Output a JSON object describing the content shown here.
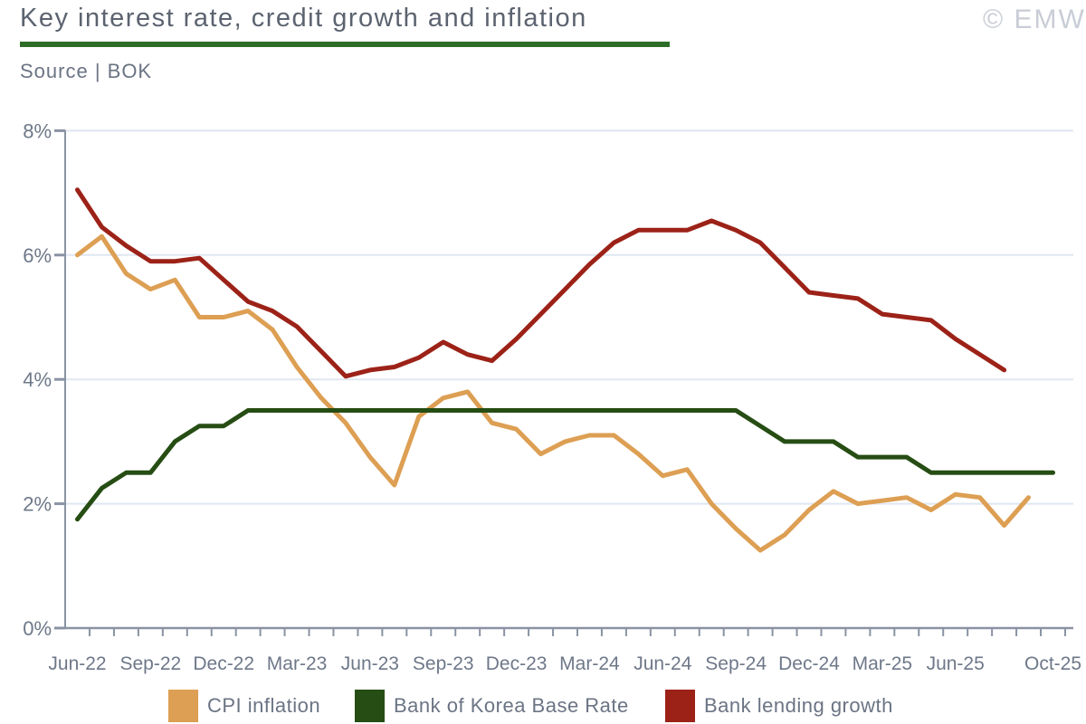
{
  "header": {
    "title": "Key interest rate, credit growth and inflation",
    "source": "Source | BOK",
    "copyright": "© EMW"
  },
  "colors": {
    "cpi_inflation": "#dd9f53",
    "base_rate": "#264d13",
    "lending_growth": "#9c2218",
    "title_underline": "#2e6d28",
    "gridline": "#dfe7f1",
    "axis": "#8a93a3",
    "label_text": "#6e7889",
    "copyright_text": "#c9cdd6"
  },
  "legend": [
    {
      "label": "CPI inflation",
      "color": "#dd9f53"
    },
    {
      "label": "Bank of Korea Base Rate",
      "color": "#264d13"
    },
    {
      "label": "Bank lending growth",
      "color": "#9c2218"
    }
  ],
  "chart_data": {
    "type": "line",
    "title": "Key interest rate, credit growth and inflation",
    "source": "BOK",
    "grid": "horizontal",
    "legend_position": "bottom",
    "ylim": [
      0,
      8
    ],
    "y_tick_values": [
      0,
      2,
      4,
      6,
      8
    ],
    "y_tick_labels": [
      "0%",
      "2%",
      "4%",
      "6%",
      "8%"
    ],
    "x_months": [
      "Jun-22",
      "Jul-22",
      "Aug-22",
      "Sep-22",
      "Oct-22",
      "Nov-22",
      "Dec-22",
      "Jan-23",
      "Feb-23",
      "Mar-23",
      "Apr-23",
      "May-23",
      "Jun-23",
      "Jul-23",
      "Aug-23",
      "Sep-23",
      "Oct-23",
      "Nov-23",
      "Dec-23",
      "Jan-24",
      "Feb-24",
      "Mar-24",
      "Apr-24",
      "May-24",
      "Jun-24",
      "Jul-24",
      "Aug-24",
      "Sep-24",
      "Oct-24",
      "Nov-24",
      "Dec-24",
      "Jan-25",
      "Feb-25",
      "Mar-25",
      "Apr-25",
      "May-25",
      "Jun-25",
      "Jul-25",
      "Aug-25",
      "Sep-25",
      "Oct-25"
    ],
    "x_label_texts": [
      "Jun-22",
      "Sep-22",
      "Dec-22",
      "Mar-23",
      "Jun-23",
      "Sep-23",
      "Dec-23",
      "Mar-24",
      "Jun-24",
      "Sep-24",
      "Dec-24",
      "Mar-25",
      "Jun-25",
      "Oct-25"
    ],
    "x_label_indices": [
      0,
      3,
      6,
      9,
      12,
      15,
      18,
      21,
      24,
      27,
      30,
      33,
      36,
      40
    ],
    "series": [
      {
        "name": "CPI inflation",
        "color": "#dd9f53",
        "values": [
          6.0,
          6.3,
          5.7,
          5.45,
          5.6,
          5.0,
          5.0,
          5.1,
          4.8,
          4.2,
          3.7,
          3.3,
          2.75,
          2.3,
          3.4,
          3.7,
          3.8,
          3.3,
          3.2,
          2.8,
          3.0,
          3.1,
          3.1,
          2.8,
          2.45,
          2.55,
          2.0,
          1.6,
          1.25,
          1.5,
          1.9,
          2.2,
          2.0,
          2.05,
          2.1,
          1.9,
          2.15,
          2.1,
          1.65,
          2.1
        ]
      },
      {
        "name": "Bank of Korea Base Rate",
        "color": "#264d13",
        "values": [
          1.75,
          2.25,
          2.5,
          2.5,
          3.0,
          3.25,
          3.25,
          3.5,
          3.5,
          3.5,
          3.5,
          3.5,
          3.5,
          3.5,
          3.5,
          3.5,
          3.5,
          3.5,
          3.5,
          3.5,
          3.5,
          3.5,
          3.5,
          3.5,
          3.5,
          3.5,
          3.5,
          3.5,
          3.25,
          3.0,
          3.0,
          3.0,
          2.75,
          2.75,
          2.75,
          2.5,
          2.5,
          2.5,
          2.5,
          2.5,
          2.5
        ]
      },
      {
        "name": "Bank lending growth",
        "color": "#9c2218",
        "values": [
          7.05,
          6.45,
          6.15,
          5.9,
          5.9,
          5.95,
          5.6,
          5.25,
          5.1,
          4.85,
          4.45,
          4.05,
          4.15,
          4.2,
          4.35,
          4.6,
          4.4,
          4.3,
          4.65,
          5.05,
          5.45,
          5.85,
          6.2,
          6.4,
          6.4,
          6.4,
          6.55,
          6.4,
          6.2,
          5.8,
          5.4,
          5.35,
          5.3,
          5.05,
          5.0,
          4.95,
          4.65,
          4.4,
          4.15
        ]
      }
    ]
  }
}
